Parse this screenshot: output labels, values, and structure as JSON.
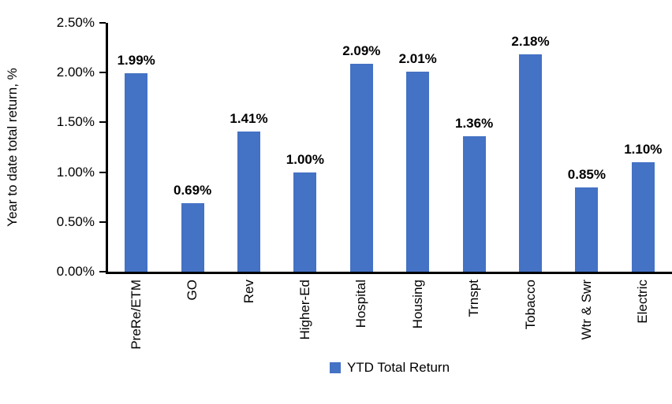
{
  "chart_data": {
    "type": "bar",
    "title": "",
    "xlabel": "",
    "ylabel": "Year to date total return, %",
    "categories": [
      "PreRe/ETM",
      "GO",
      "Rev",
      "Higher-Ed",
      "Hospital",
      "Housing",
      "Trnspt",
      "Tobacco",
      "Wtr & Swr",
      "Electric"
    ],
    "values": [
      1.99,
      0.69,
      1.41,
      1.0,
      2.09,
      2.01,
      1.36,
      2.18,
      0.85,
      1.1
    ],
    "data_labels": [
      "1.99%",
      "0.69%",
      "1.41%",
      "1.00%",
      "2.09%",
      "2.01%",
      "1.36%",
      "2.18%",
      "0.85%",
      "1.10%"
    ],
    "ylim": [
      0,
      2.5
    ],
    "ytick_step": 0.5,
    "ytick_labels": [
      "0.00%",
      "0.50%",
      "1.00%",
      "1.50%",
      "2.00%",
      "2.50%"
    ],
    "grid": false,
    "bar_color": "#4472C4",
    "axis_color": "#000000",
    "legend_position": "bottom",
    "legend": [
      {
        "label": "YTD Total Return",
        "color": "#4472C4"
      }
    ]
  }
}
